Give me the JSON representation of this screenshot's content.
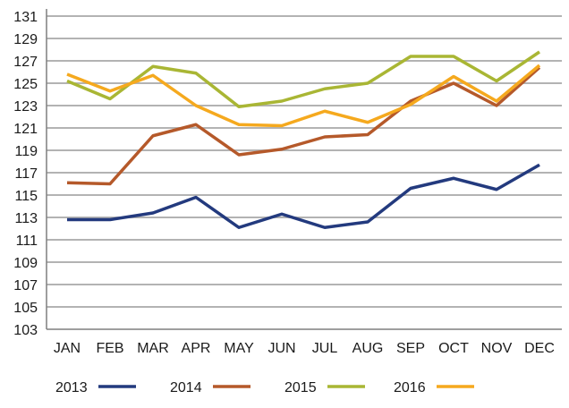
{
  "chart_data": {
    "type": "line",
    "title": "",
    "xlabel": "",
    "ylabel": "",
    "categories": [
      "JAN",
      "FEB",
      "MAR",
      "APR",
      "MAY",
      "JUN",
      "JUL",
      "AUG",
      "SEP",
      "OCT",
      "NOV",
      "DEC"
    ],
    "ylim": [
      103,
      131
    ],
    "yticks": [
      103,
      105,
      107,
      109,
      111,
      113,
      115,
      117,
      119,
      121,
      123,
      125,
      127,
      129,
      131
    ],
    "grid": true,
    "legend_position": "bottom",
    "series": [
      {
        "name": "2013",
        "color": "#233a7e",
        "values": [
          112.8,
          112.8,
          113.4,
          114.8,
          112.1,
          113.3,
          112.1,
          112.6,
          115.6,
          116.5,
          115.5,
          117.7
        ]
      },
      {
        "name": "2014",
        "color": "#b5592a",
        "values": [
          116.1,
          116.0,
          120.3,
          121.3,
          118.6,
          119.1,
          120.2,
          120.4,
          123.4,
          125.0,
          123.0,
          126.4
        ]
      },
      {
        "name": "2015",
        "color": "#a9b634",
        "values": [
          125.2,
          123.6,
          126.5,
          125.9,
          122.9,
          123.4,
          124.5,
          125.0,
          127.4,
          127.4,
          125.2,
          127.8
        ]
      },
      {
        "name": "2016",
        "color": "#f5a91e",
        "values": [
          125.8,
          124.3,
          125.7,
          123.0,
          121.3,
          121.2,
          122.5,
          121.5,
          123.1,
          125.6,
          123.4,
          126.6
        ]
      }
    ]
  }
}
